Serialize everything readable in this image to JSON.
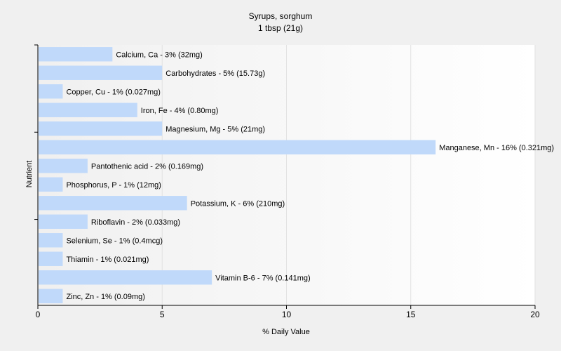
{
  "chart_data": {
    "type": "bar",
    "orientation": "horizontal",
    "title": "Syrups, sorghum",
    "subtitle": "1 tbsp (21g)",
    "xlabel": "% Daily Value",
    "ylabel": "Nutrient",
    "xlim": [
      0,
      20
    ],
    "xticks": [
      0,
      5,
      10,
      15,
      20
    ],
    "grid": "vertical",
    "bar_color": "#c0d9fa",
    "categories": [
      "Calcium, Ca",
      "Carbohydrates",
      "Copper, Cu",
      "Iron, Fe",
      "Magnesium, Mg",
      "Manganese, Mn",
      "Pantothenic acid",
      "Phosphorus, P",
      "Potassium, K",
      "Riboflavin",
      "Selenium, Se",
      "Thiamin",
      "Vitamin B-6",
      "Zinc, Zn"
    ],
    "values": [
      3,
      5,
      1,
      4,
      5,
      16,
      2,
      1,
      6,
      2,
      1,
      1,
      7,
      1
    ],
    "labels": [
      "Calcium, Ca - 3% (32mg)",
      "Carbohydrates - 5% (15.73g)",
      "Copper, Cu - 1% (0.027mg)",
      "Iron, Fe - 4% (0.80mg)",
      "Magnesium, Mg - 5% (21mg)",
      "Manganese, Mn - 16% (0.321mg)",
      "Pantothenic acid - 2% (0.169mg)",
      "Phosphorus, P - 1% (12mg)",
      "Potassium, K - 6% (210mg)",
      "Riboflavin - 2% (0.033mg)",
      "Selenium, Se - 1% (0.4mcg)",
      "Thiamin - 1% (0.021mg)",
      "Vitamin B-6 - 7% (0.141mg)",
      "Zinc, Zn - 1% (0.09mg)"
    ]
  }
}
